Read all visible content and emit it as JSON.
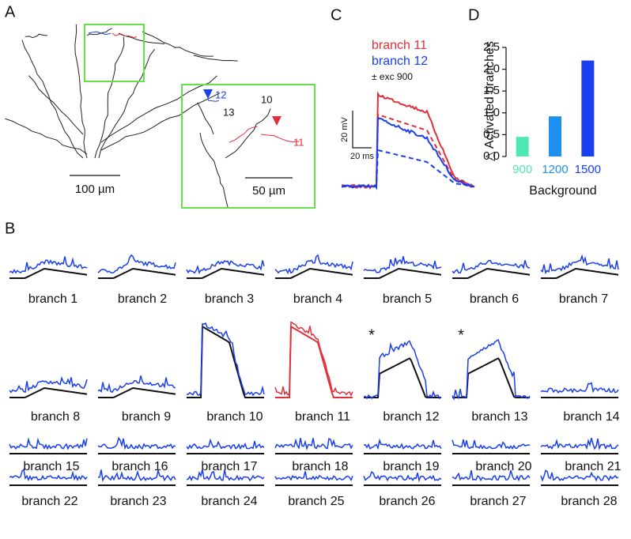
{
  "panels": {
    "a": {
      "label": "A",
      "scale_bar_large": "100 µm",
      "scale_bar_small": "50 µm",
      "branch_labels": [
        "12",
        "13",
        "10",
        "11"
      ]
    },
    "b": {
      "label": "B",
      "asterisks": [
        "*",
        "*"
      ],
      "branches": [
        "branch 1",
        "branch 2",
        "branch 3",
        "branch 4",
        "branch 5",
        "branch 6",
        "branch 7",
        "branch 8",
        "branch 9",
        "branch 10",
        "branch 11",
        "branch 12",
        "branch 13",
        "branch 14",
        "branch 15",
        "branch 16",
        "branch 17",
        "branch 18",
        "branch 19",
        "branch 20",
        "branch 21",
        "branch 22",
        "branch 23",
        "branch 24",
        "branch 25",
        "branch 26",
        "branch 27",
        "branch 28"
      ]
    },
    "c": {
      "label": "C",
      "legend": [
        "branch 11",
        "branch 12",
        "± exc 900"
      ],
      "y_scale": "20 mV",
      "x_scale": "20 ms"
    },
    "d": {
      "label": "D"
    }
  },
  "chart_data": {
    "type": "bar",
    "ylabel": "△ Activated branches",
    "xlabel": "Background",
    "categories": [
      "900",
      "1200",
      "1500"
    ],
    "values": [
      0.45,
      0.92,
      2.2
    ],
    "colors": [
      "#4de8b4",
      "#1e90f0",
      "#1a3ff0"
    ],
    "ylim": [
      0,
      2.5
    ],
    "yticks": [
      {
        "value": 0,
        "label": "0.0"
      },
      0.5,
      {
        "value": 1,
        "label": "1.0"
      },
      1.5,
      {
        "value": 2,
        "label": "2.0"
      },
      2.5
    ]
  }
}
